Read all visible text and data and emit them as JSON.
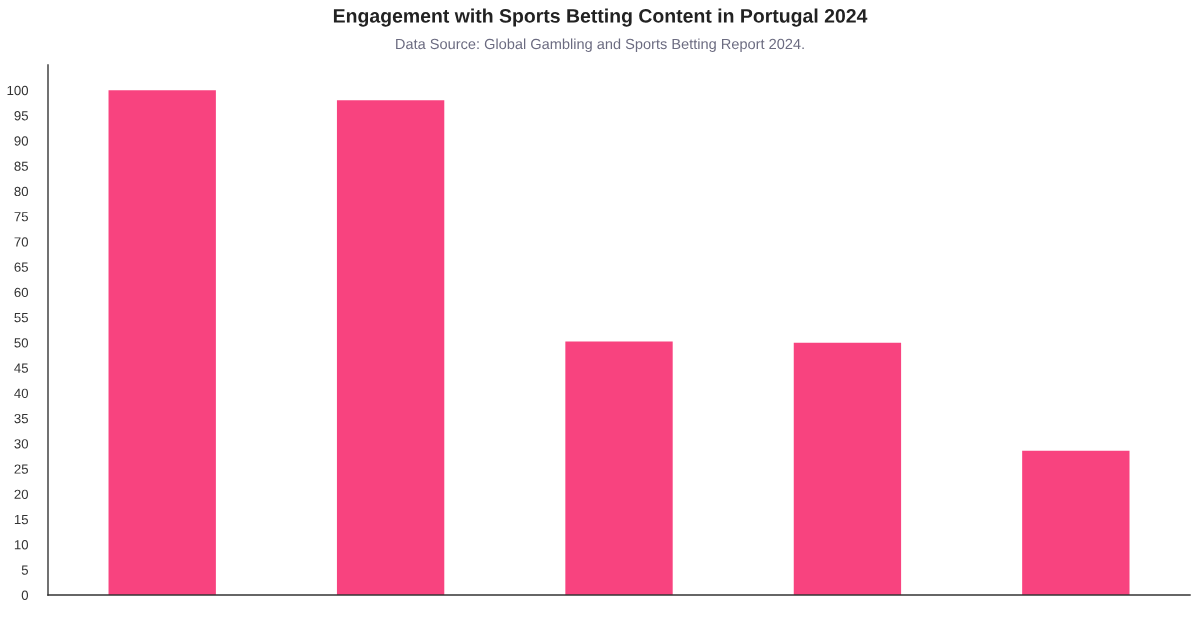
{
  "chart_data": {
    "type": "bar",
    "title": "Engagement with Sports Betting Content in Portugal 2024",
    "subtitle": "Data Source: Global Gambling and Sports Betting Report 2024.",
    "categories": [
      null,
      null,
      null,
      null,
      null
    ],
    "values": [
      100,
      98,
      50.2,
      50,
      28.6
    ],
    "color": "#f8437f",
    "ylim": [
      0,
      105
    ],
    "yticks": [
      0,
      5,
      10,
      15,
      20,
      25,
      30,
      35,
      40,
      45,
      50,
      55,
      60,
      65,
      70,
      75,
      80,
      85,
      90,
      95,
      100
    ],
    "grid": false,
    "legend": false
  }
}
